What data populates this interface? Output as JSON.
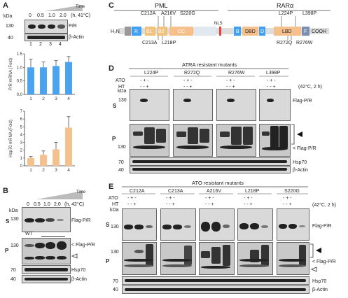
{
  "panels": {
    "A": {
      "label": "A",
      "time_label": "Time",
      "kda": "kDa",
      "conditions": [
        "0",
        "0.5",
        "1.0",
        "2.0"
      ],
      "condition_unit": "(h, 41°C)",
      "mw": [
        "130",
        "40"
      ],
      "blot_labels": [
        "P/R",
        "β-Actin"
      ],
      "lanes": [
        "1",
        "2",
        "3",
        "4"
      ],
      "chart1_ylabel": "P/R mRNA (Fold)",
      "chart2_ylabel": "Hsp70 mRNA (Fold)"
    },
    "B": {
      "label": "B",
      "time_label": "Time",
      "conditions": [
        "0",
        "0.5",
        "1.0",
        "2.0"
      ],
      "condition_unit": "(h, 42°C)",
      "kda": "kDa",
      "s_label": "S",
      "p_label": "P",
      "wt": "WT",
      "mw": [
        "130",
        "130",
        "70",
        "40"
      ],
      "labels": [
        "Flag-P/R",
        "< Flag-P/R",
        "Hsp70",
        "β-Actin"
      ]
    },
    "C": {
      "label": "C",
      "pml": "PML",
      "rara": "RARα",
      "h2n": "H₂N",
      "cooh": "COOH",
      "nls": "NLS",
      "domains": [
        "R",
        "B1",
        "B2",
        "CC",
        "B",
        "DBD",
        "D",
        "LBD",
        "F"
      ],
      "mutations_top": [
        "C212A",
        "A216V",
        "S220G",
        "L224P",
        "L398P"
      ],
      "mutations_bottom": [
        "C213A",
        "L218P",
        "R272Q",
        "R276W"
      ]
    },
    "D": {
      "label": "D",
      "title": "ATRA resistant mutants",
      "groups": [
        "L224P",
        "R272Q",
        "R276W",
        "L398P"
      ],
      "ato": "ATO",
      "ht": "HT",
      "signs_ato": "- + -",
      "signs_ht": "- - +",
      "condition": "(42°C, 2 h)",
      "kda": "kDa",
      "s_label": "S",
      "p_label": "P",
      "mw": [
        "130",
        "130",
        "70",
        "40"
      ],
      "labels": [
        "Flag-P/R",
        "< Flag-P/R",
        "Hsp70",
        "β-Actin"
      ]
    },
    "E": {
      "label": "E",
      "title": "ATO resistant mutants",
      "groups": [
        "C212A",
        "C213A",
        "A216V",
        "L218P",
        "S220G"
      ],
      "ato": "ATO",
      "ht": "HT",
      "signs_ato": "- + -",
      "signs_ht": "- - +",
      "condition": "(42°C, 2 h)",
      "kda": "kDa",
      "s_label": "S",
      "p_label": "P",
      "mw": [
        "130",
        "130",
        "70",
        "40"
      ],
      "labels": [
        "Flag-P/R",
        "< Flag-P/R",
        "Hsp70",
        "β-Actin"
      ]
    }
  },
  "chart_data": [
    {
      "type": "bar",
      "categories": [
        "1",
        "2",
        "3",
        "4"
      ],
      "values": [
        1.0,
        1.0,
        1.05,
        1.2
      ],
      "errors": [
        0.3,
        0.2,
        0.2,
        0.2
      ],
      "ylabel": "P/R mRNA (Fold)",
      "ylim": [
        0,
        1.5
      ],
      "yticks": [
        0,
        0.5,
        1.0,
        1.5
      ],
      "color": "#4aa3f0"
    },
    {
      "type": "bar",
      "categories": [
        "1",
        "2",
        "3",
        "4"
      ],
      "values": [
        1,
        1.4,
        2.1,
        4.9
      ],
      "errors": [
        0.2,
        0.5,
        0.9,
        1.4
      ],
      "ylabel": "Hsp70 mRNA (Fold)",
      "ylim": [
        0,
        7
      ],
      "yticks": [
        0,
        1,
        2,
        3,
        4,
        5,
        6,
        7
      ],
      "color": "#f6c08d"
    }
  ]
}
